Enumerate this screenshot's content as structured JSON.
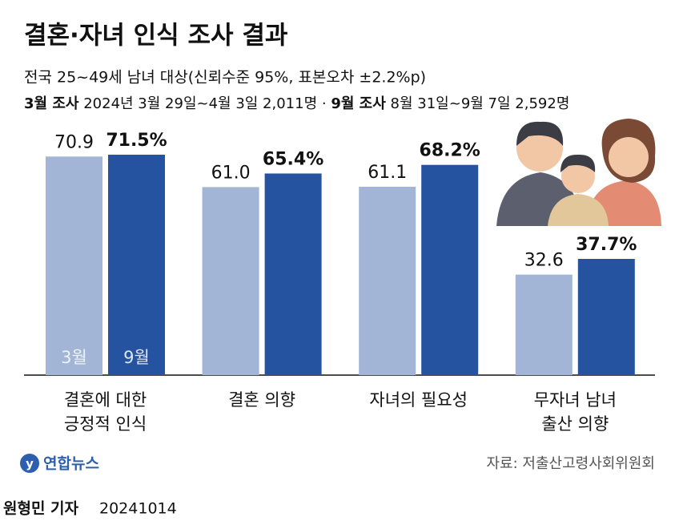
{
  "chart_data": {
    "type": "bar",
    "title": "결혼·자녀 인식 조사 결과",
    "subtitle": "전국 25~49세 남녀 대상(신뢰수준 95%, 표본오차 ±2.2%p)",
    "surveys": [
      {
        "label": "3월 조사",
        "detail": "2024년 3월 29일~4월 3일 2,011명"
      },
      {
        "label": "9월 조사",
        "detail": "8월 31일~9월 7일 2,592명"
      }
    ],
    "separator": "·",
    "categories": [
      "결혼에 대한\n긍정적 인식",
      "결혼 의향",
      "자녀의 필요성",
      "무자녀 남녀\n출산 의향"
    ],
    "series": [
      {
        "name": "3월",
        "color": "#a3b5d6",
        "values": [
          70.9,
          61.0,
          61.1,
          32.6
        ],
        "value_labels": [
          "70.9",
          "61.0",
          "61.1",
          "32.6"
        ]
      },
      {
        "name": "9월",
        "color": "#2553a0",
        "values": [
          71.5,
          65.4,
          68.2,
          37.7
        ],
        "value_labels": [
          "71.5%",
          "65.4%",
          "68.2%",
          "37.7%"
        ]
      }
    ],
    "ylim": [
      0,
      100
    ],
    "source": "자료: 저출산고령사회위원회",
    "logo": "연합뉴스",
    "reporter": "원형민 기자",
    "date": "20241014"
  }
}
